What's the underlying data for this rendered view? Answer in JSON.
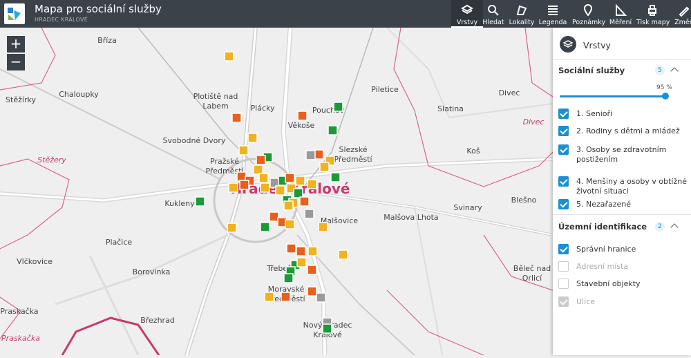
{
  "header": {
    "title": "Mapa pro sociální služby",
    "subtitle": "HRADEC KRÁLOVÉ"
  },
  "toolbar": {
    "items": [
      "Vrstvy",
      "Hledat",
      "Lokality",
      "Legenda",
      "Poznámky",
      "Měření",
      "Tisk mapy",
      "Změn"
    ],
    "active": 0
  },
  "map": {
    "zoom": [
      "+",
      "−"
    ],
    "labels": [
      "Bříza",
      "Chaloupky",
      "Plotiště nad Labem",
      "Plácky",
      "Pouchov",
      "Piletice",
      "Divec",
      "Stěžírky",
      "Věkoše",
      "Slatina",
      "Stěžery",
      "Svobodné Dvory",
      "Slezské Předměstí",
      "Koš",
      "Divec",
      "Pražské Předměstí",
      "Hradec Králové",
      "Kukleny",
      "Svinary",
      "Malšovice",
      "Malšova Lhota",
      "Plačice",
      "Vlčkovice",
      "Třebeš",
      "Moravské Předměstí",
      "Běleč nad Orlicí",
      "Borovinka",
      "Březhrad",
      "Nový Hradec Králové",
      "Praskačka",
      "Praskačka",
      "Blešno"
    ]
  },
  "panel": {
    "title": "Vrstvy",
    "sections": [
      {
        "title": "Sociální služby",
        "count": "5",
        "opacity_label": "95 %",
        "items": [
          {
            "label": "1. Senioři",
            "checked": true,
            "enabled": true
          },
          {
            "label": "2. Rodiny s dětmi a mládež",
            "checked": true,
            "enabled": true
          },
          {
            "label": "3. Osoby se zdravotním postižením",
            "checked": true,
            "enabled": true
          },
          {
            "label": "4. Menšiny a osoby v obtížné životní situaci",
            "checked": true,
            "enabled": true
          },
          {
            "label": "5. Nezařazené",
            "checked": true,
            "enabled": true
          }
        ]
      },
      {
        "title": "Územní identifikace",
        "count": "2",
        "items": [
          {
            "label": "Správní hranice",
            "checked": true,
            "enabled": true
          },
          {
            "label": "Adresní místa",
            "checked": false,
            "enabled": false
          },
          {
            "label": "Stavební objekty",
            "checked": false,
            "enabled": true
          },
          {
            "label": "Ulice",
            "checked": true,
            "enabled": false
          }
        ]
      }
    ]
  }
}
